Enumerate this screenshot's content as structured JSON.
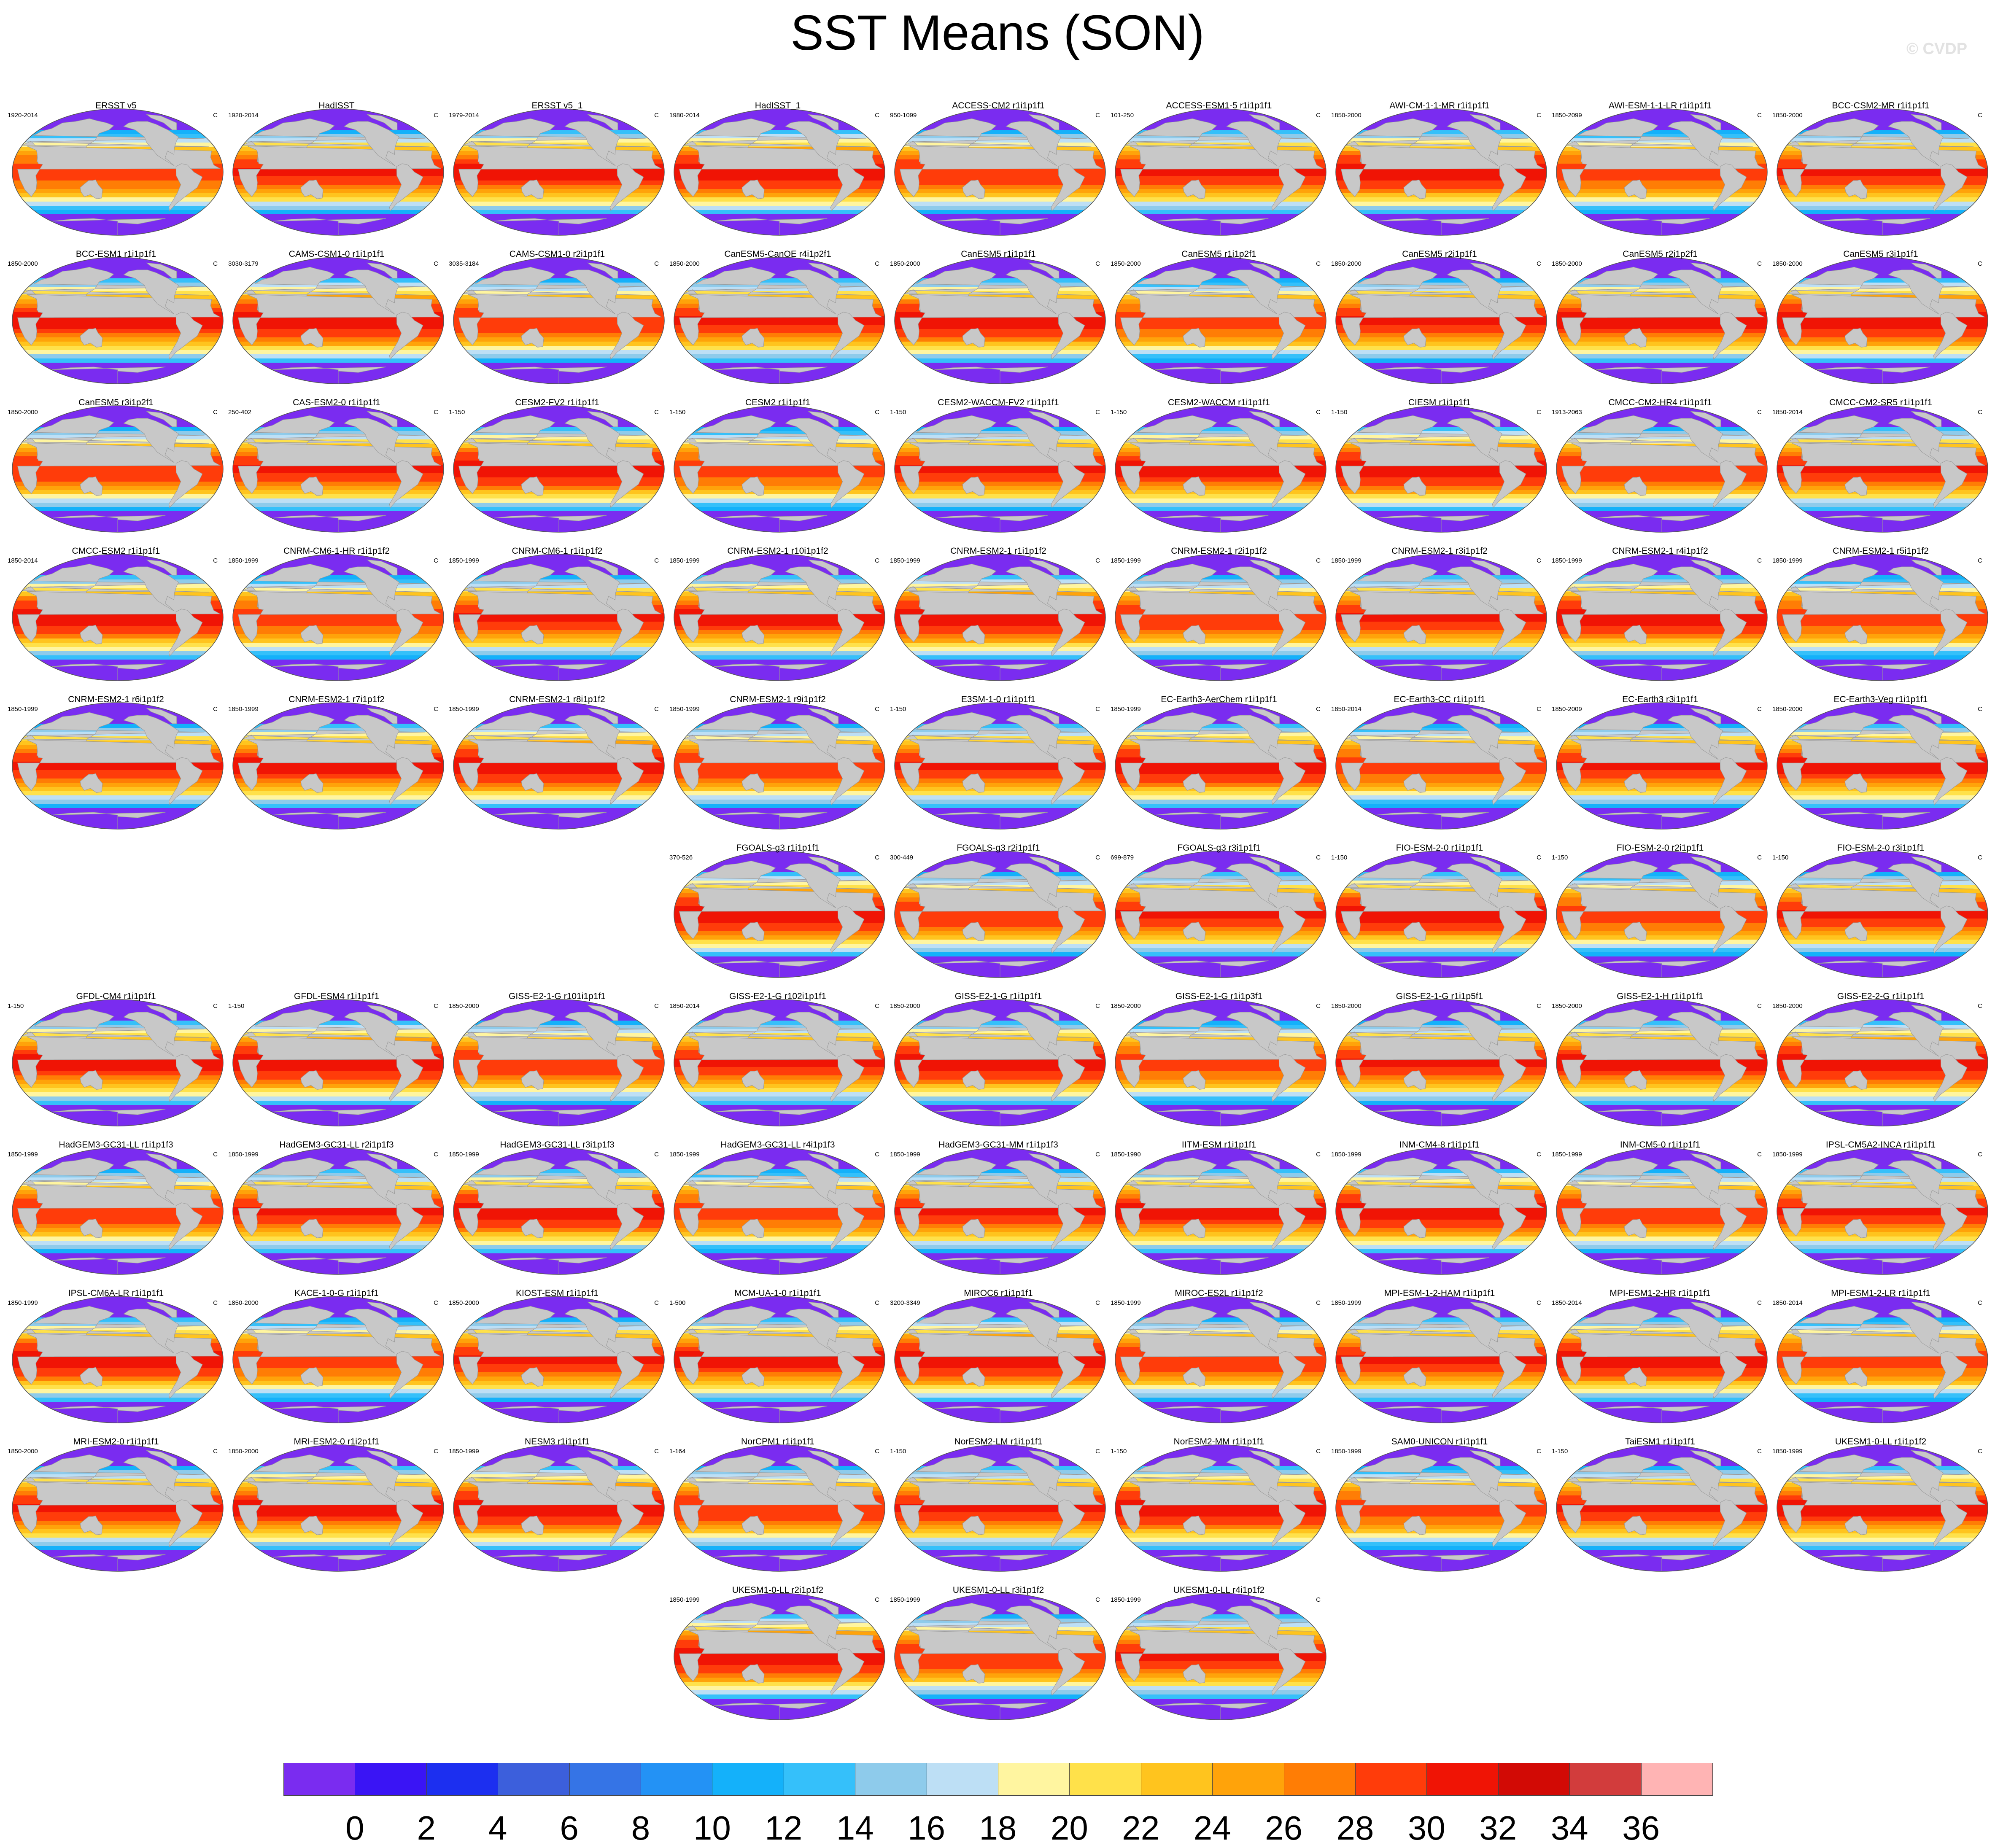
{
  "title": "SST Means (SON)",
  "watermark": "© CVDP",
  "unit": "C",
  "panels": [
    {
      "title": "ERSST v5",
      "period": "1920-2014"
    },
    {
      "title": "HadISST",
      "period": "1920-2014"
    },
    {
      "title": "ERSST v5_1",
      "period": "1979-2014"
    },
    {
      "title": "HadISST_1",
      "period": "1980-2014"
    },
    {
      "title": "ACCESS-CM2 r1i1p1f1",
      "period": "950-1099"
    },
    {
      "title": "ACCESS-ESM1-5 r1i1p1f1",
      "period": "101-250"
    },
    {
      "title": "AWI-CM-1-1-MR r1i1p1f1",
      "period": "1850-2000"
    },
    {
      "title": "AWI-ESM-1-1-LR r1i1p1f1",
      "period": "1850-2099"
    },
    {
      "title": "BCC-CSM2-MR r1i1p1f1",
      "period": "1850-2000"
    },
    {
      "title": "BCC-ESM1 r1i1p1f1",
      "period": "1850-2000"
    },
    {
      "title": "CAMS-CSM1-0 r1i1p1f1",
      "period": "3030-3179"
    },
    {
      "title": "CAMS-CSM1-0 r2i1p1f1",
      "period": "3035-3184"
    },
    {
      "title": "CanESM5-CanOE r4i1p2f1",
      "period": "1850-2000"
    },
    {
      "title": "CanESM5 r1i1p1f1",
      "period": "1850-2000"
    },
    {
      "title": "CanESM5 r1i1p2f1",
      "period": "1850-2000"
    },
    {
      "title": "CanESM5 r2i1p1f1",
      "period": "1850-2000"
    },
    {
      "title": "CanESM5 r2i1p2f1",
      "period": "1850-2000"
    },
    {
      "title": "CanESM5 r3i1p1f1",
      "period": "1850-2000"
    },
    {
      "title": "CanESM5 r3i1p2f1",
      "period": "1850-2000"
    },
    {
      "title": "CAS-ESM2-0 r1i1p1f1",
      "period": "250-402"
    },
    {
      "title": "CESM2-FV2 r1i1p1f1",
      "period": "1-150"
    },
    {
      "title": "CESM2 r1i1p1f1",
      "period": "1-150"
    },
    {
      "title": "CESM2-WACCM-FV2 r1i1p1f1",
      "period": "1-150"
    },
    {
      "title": "CESM2-WACCM r1i1p1f1",
      "period": "1-150"
    },
    {
      "title": "CIESM r1i1p1f1",
      "period": "1-150"
    },
    {
      "title": "CMCC-CM2-HR4 r1i1p1f1",
      "period": "1913-2063"
    },
    {
      "title": "CMCC-CM2-SR5 r1i1p1f1",
      "period": "1850-2014"
    },
    {
      "title": "CMCC-ESM2 r1i1p1f1",
      "period": "1850-2014"
    },
    {
      "title": "CNRM-CM6-1-HR r1i1p1f2",
      "period": "1850-1999"
    },
    {
      "title": "CNRM-CM6-1 r1i1p1f2",
      "period": "1850-1999"
    },
    {
      "title": "CNRM-ESM2-1 r10i1p1f2",
      "period": "1850-1999"
    },
    {
      "title": "CNRM-ESM2-1 r1i1p1f2",
      "period": "1850-1999"
    },
    {
      "title": "CNRM-ESM2-1 r2i1p1f2",
      "period": "1850-1999"
    },
    {
      "title": "CNRM-ESM2-1 r3i1p1f2",
      "period": "1850-1999"
    },
    {
      "title": "CNRM-ESM2-1 r4i1p1f2",
      "period": "1850-1999"
    },
    {
      "title": "CNRM-ESM2-1 r5i1p1f2",
      "period": "1850-1999"
    },
    {
      "title": "CNRM-ESM2-1 r6i1p1f2",
      "period": "1850-1999"
    },
    {
      "title": "CNRM-ESM2-1 r7i1p1f2",
      "period": "1850-1999"
    },
    {
      "title": "CNRM-ESM2-1 r8i1p1f2",
      "period": "1850-1999"
    },
    {
      "title": "CNRM-ESM2-1 r9i1p1f2",
      "period": "1850-1999"
    },
    {
      "title": "E3SM-1-0 r1i1p1f1",
      "period": "1-150"
    },
    {
      "title": "EC-Earth3-AerChem r1i1p1f1",
      "period": "1850-1999"
    },
    {
      "title": "EC-Earth3-CC r1i1p1f1",
      "period": "1850-2014"
    },
    {
      "title": "EC-Earth3 r3i1p1f1",
      "period": "1850-2009"
    },
    {
      "title": "EC-Earth3-Veg r1i1p1f1",
      "period": "1850-2000"
    },
    {
      "title": "FGOALS-g3 r1i1p1f1",
      "period": "370-526"
    },
    {
      "title": "FGOALS-g3 r2i1p1f1",
      "period": "300-449"
    },
    {
      "title": "FGOALS-g3 r3i1p1f1",
      "period": "699-879"
    },
    {
      "title": "FIO-ESM-2-0 r1i1p1f1",
      "period": "1-150"
    },
    {
      "title": "FIO-ESM-2-0 r2i1p1f1",
      "period": "1-150"
    },
    {
      "title": "FIO-ESM-2-0 r3i1p1f1",
      "period": "1-150"
    },
    {
      "title": "GFDL-CM4 r1i1p1f1",
      "period": "1-150"
    },
    {
      "title": "GFDL-ESM4 r1i1p1f1",
      "period": "1-150"
    },
    {
      "title": "GISS-E2-1-G r101i1p1f1",
      "period": "1850-2000"
    },
    {
      "title": "GISS-E2-1-G r102i1p1f1",
      "period": "1850-2014"
    },
    {
      "title": "GISS-E2-1-G r1i1p1f1",
      "period": "1850-2000"
    },
    {
      "title": "GISS-E2-1-G r1i1p3f1",
      "period": "1850-2000"
    },
    {
      "title": "GISS-E2-1-G r1i1p5f1",
      "period": "1850-2000"
    },
    {
      "title": "GISS-E2-1-H r1i1p1f1",
      "period": "1850-2000"
    },
    {
      "title": "GISS-E2-2-G r1i1p1f1",
      "period": "1850-2000"
    },
    {
      "title": "HadGEM3-GC31-LL r1i1p1f3",
      "period": "1850-1999"
    },
    {
      "title": "HadGEM3-GC31-LL r2i1p1f3",
      "period": "1850-1999"
    },
    {
      "title": "HadGEM3-GC31-LL r3i1p1f3",
      "period": "1850-1999"
    },
    {
      "title": "HadGEM3-GC31-LL r4i1p1f3",
      "period": "1850-1999"
    },
    {
      "title": "HadGEM3-GC31-MM r1i1p1f3",
      "period": "1850-1999"
    },
    {
      "title": "IITM-ESM r1i1p1f1",
      "period": "1850-1990"
    },
    {
      "title": "INM-CM4-8 r1i1p1f1",
      "period": "1850-1999"
    },
    {
      "title": "INM-CM5-0 r1i1p1f1",
      "period": "1850-1999"
    },
    {
      "title": "IPSL-CM5A2-INCA r1i1p1f1",
      "period": "1850-1999"
    },
    {
      "title": "IPSL-CM6A-LR r1i1p1f1",
      "period": "1850-1999"
    },
    {
      "title": "KACE-1-0-G r1i1p1f1",
      "period": "1850-2000"
    },
    {
      "title": "KIOST-ESM r1i1p1f1",
      "period": "1850-2000"
    },
    {
      "title": "MCM-UA-1-0 r1i1p1f1",
      "period": "1-500"
    },
    {
      "title": "MIROC6 r1i1p1f1",
      "period": "3200-3349"
    },
    {
      "title": "MIROC-ES2L r1i1p1f2",
      "period": "1850-1999"
    },
    {
      "title": "MPI-ESM-1-2-HAM r1i1p1f1",
      "period": "1850-1999"
    },
    {
      "title": "MPI-ESM1-2-HR r1i1p1f1",
      "period": "1850-2014"
    },
    {
      "title": "MPI-ESM1-2-LR r1i1p1f1",
      "period": "1850-2014"
    },
    {
      "title": "MRI-ESM2-0 r1i1p1f1",
      "period": "1850-2000"
    },
    {
      "title": "MRI-ESM2-0 r1i2p1f1",
      "period": "1850-2000"
    },
    {
      "title": "NESM3 r1i1p1f1",
      "period": "1850-1999"
    },
    {
      "title": "NorCPM1 r1i1p1f1",
      "period": "1-164"
    },
    {
      "title": "NorESM2-LM r1i1p1f1",
      "period": "1-150"
    },
    {
      "title": "NorESM2-MM r1i1p1f1",
      "period": "1-150"
    },
    {
      "title": "SAM0-UNICON r1i1p1f1",
      "period": "1850-1999"
    },
    {
      "title": "TaiESM1 r1i1p1f1",
      "period": "1-150"
    },
    {
      "title": "UKESM1-0-LL r1i1p1f2",
      "period": "1850-1999"
    },
    {
      "title": "UKESM1-0-LL r2i1p1f2",
      "period": "1850-1999"
    },
    {
      "title": "UKESM1-0-LL r3i1p1f2",
      "period": "1850-1999"
    },
    {
      "title": "UKESM1-0-LL r4i1p1f2",
      "period": "1850-1999"
    }
  ],
  "colorbar": {
    "colors": [
      "#7a2cf0",
      "#3a14f5",
      "#1c2ff0",
      "#3c5fdc",
      "#3574e6",
      "#2392f5",
      "#14b1fa",
      "#35c0fa",
      "#8ecbeb",
      "#bddff5",
      "#fff5a0",
      "#ffe14a",
      "#ffc41e",
      "#ffa30a",
      "#ff7d05",
      "#ff3c0a",
      "#f01405",
      "#d20a05",
      "#d23c3c",
      "#ffb4b4"
    ],
    "ticks": [
      "0",
      "2",
      "4",
      "6",
      "8",
      "10",
      "12",
      "14",
      "16",
      "18",
      "20",
      "22",
      "24",
      "26",
      "28",
      "30",
      "32",
      "34",
      "36"
    ]
  }
}
